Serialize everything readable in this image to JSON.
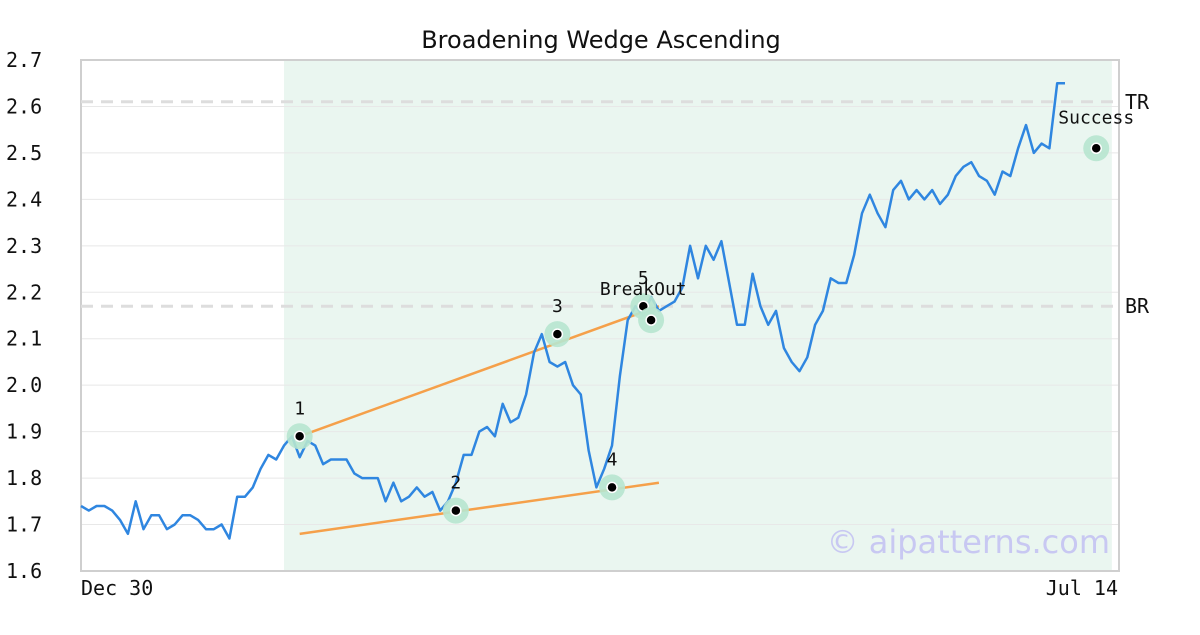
{
  "chart_data": {
    "type": "line",
    "title": "Broadening Wedge Ascending",
    "xlabel": "",
    "ylabel": "",
    "ylim": [
      1.6,
      2.7
    ],
    "y_ticks": [
      "1.6",
      "1.7",
      "1.8",
      "1.9",
      "2.0",
      "2.1",
      "2.2",
      "2.3",
      "2.4",
      "2.5",
      "2.6",
      "2.7"
    ],
    "x_tick_labels": [
      {
        "label": "Dec 30",
        "index": 0
      },
      {
        "label": "Jul 14",
        "index": 139
      }
    ],
    "grid": true,
    "watermark": "© aipatterns.com",
    "colors": {
      "price": "#2f86e0",
      "trendline": "#f5a04a",
      "pattern_region": "#eaf6f0",
      "point_halo": "#b7e6cf",
      "reference_line": "#dddddd",
      "grid": "#e8e8e8",
      "watermark": "#c8c8f2"
    },
    "pattern_region": {
      "x_start": 26,
      "x_end": 132
    },
    "series": [
      {
        "values": [
          1.74,
          1.73,
          1.74,
          1.74,
          1.73,
          1.71,
          1.68,
          1.75,
          1.69,
          1.72,
          1.72,
          1.69,
          1.7,
          1.72,
          1.72,
          1.71,
          1.69,
          1.69,
          1.7,
          1.67,
          1.76,
          1.76,
          1.78,
          1.82,
          1.85,
          1.84,
          1.87,
          1.89,
          1.845,
          1.88,
          1.87,
          1.83,
          1.84,
          1.84,
          1.84,
          1.81,
          1.8,
          1.8,
          1.8,
          1.75,
          1.79,
          1.75,
          1.76,
          1.78,
          1.76,
          1.77,
          1.73,
          1.75,
          1.79,
          1.85,
          1.85,
          1.9,
          1.91,
          1.89,
          1.96,
          1.92,
          1.93,
          1.98,
          2.07,
          2.11,
          2.05,
          2.04,
          2.05,
          2.0,
          1.98,
          1.86,
          1.78,
          1.82,
          1.87,
          2.02,
          2.14,
          2.17,
          2.15,
          2.19,
          2.16,
          2.17,
          2.18,
          2.21,
          2.3,
          2.23,
          2.3,
          2.27,
          2.31,
          2.22,
          2.13,
          2.13,
          2.24,
          2.17,
          2.13,
          2.16,
          2.08,
          2.05,
          2.03,
          2.06,
          2.13,
          2.16,
          2.23,
          2.22,
          2.22,
          2.28,
          2.37,
          2.41,
          2.37,
          2.34,
          2.42,
          2.44,
          2.4,
          2.42,
          2.4,
          2.42,
          2.39,
          2.41,
          2.45,
          2.47,
          2.48,
          2.45,
          2.44,
          2.41,
          2.46,
          2.45,
          2.51,
          2.56,
          2.5,
          2.52,
          2.51,
          2.65,
          2.65
        ]
      }
    ],
    "trendlines": [
      {
        "from": {
          "x": 28,
          "y": 1.89
        },
        "to": {
          "x": 74,
          "y": 2.17
        }
      },
      {
        "from": {
          "x": 28,
          "y": 1.68
        },
        "to": {
          "x": 74,
          "y": 1.79
        }
      }
    ],
    "reference_lines": [
      {
        "label": "TR",
        "y": 2.61
      },
      {
        "label": "BR",
        "y": 2.17
      }
    ],
    "pattern_points": [
      {
        "label": "1",
        "x": 28,
        "y": 1.89
      },
      {
        "label": "2",
        "x": 48,
        "y": 1.73
      },
      {
        "label": "3",
        "x": 61,
        "y": 2.11
      },
      {
        "label": "4",
        "x": 68,
        "y": 1.78
      },
      {
        "label": "5",
        "x": 72,
        "y": 2.17
      },
      {
        "label": "",
        "x": 73,
        "y": 2.14
      },
      {
        "label": "",
        "x": 130,
        "y": 2.51
      }
    ],
    "annotations": [
      {
        "text": "BreakOut",
        "x": 72,
        "y": 2.17
      },
      {
        "text": "Success",
        "x": 130,
        "y": 2.51
      }
    ]
  }
}
